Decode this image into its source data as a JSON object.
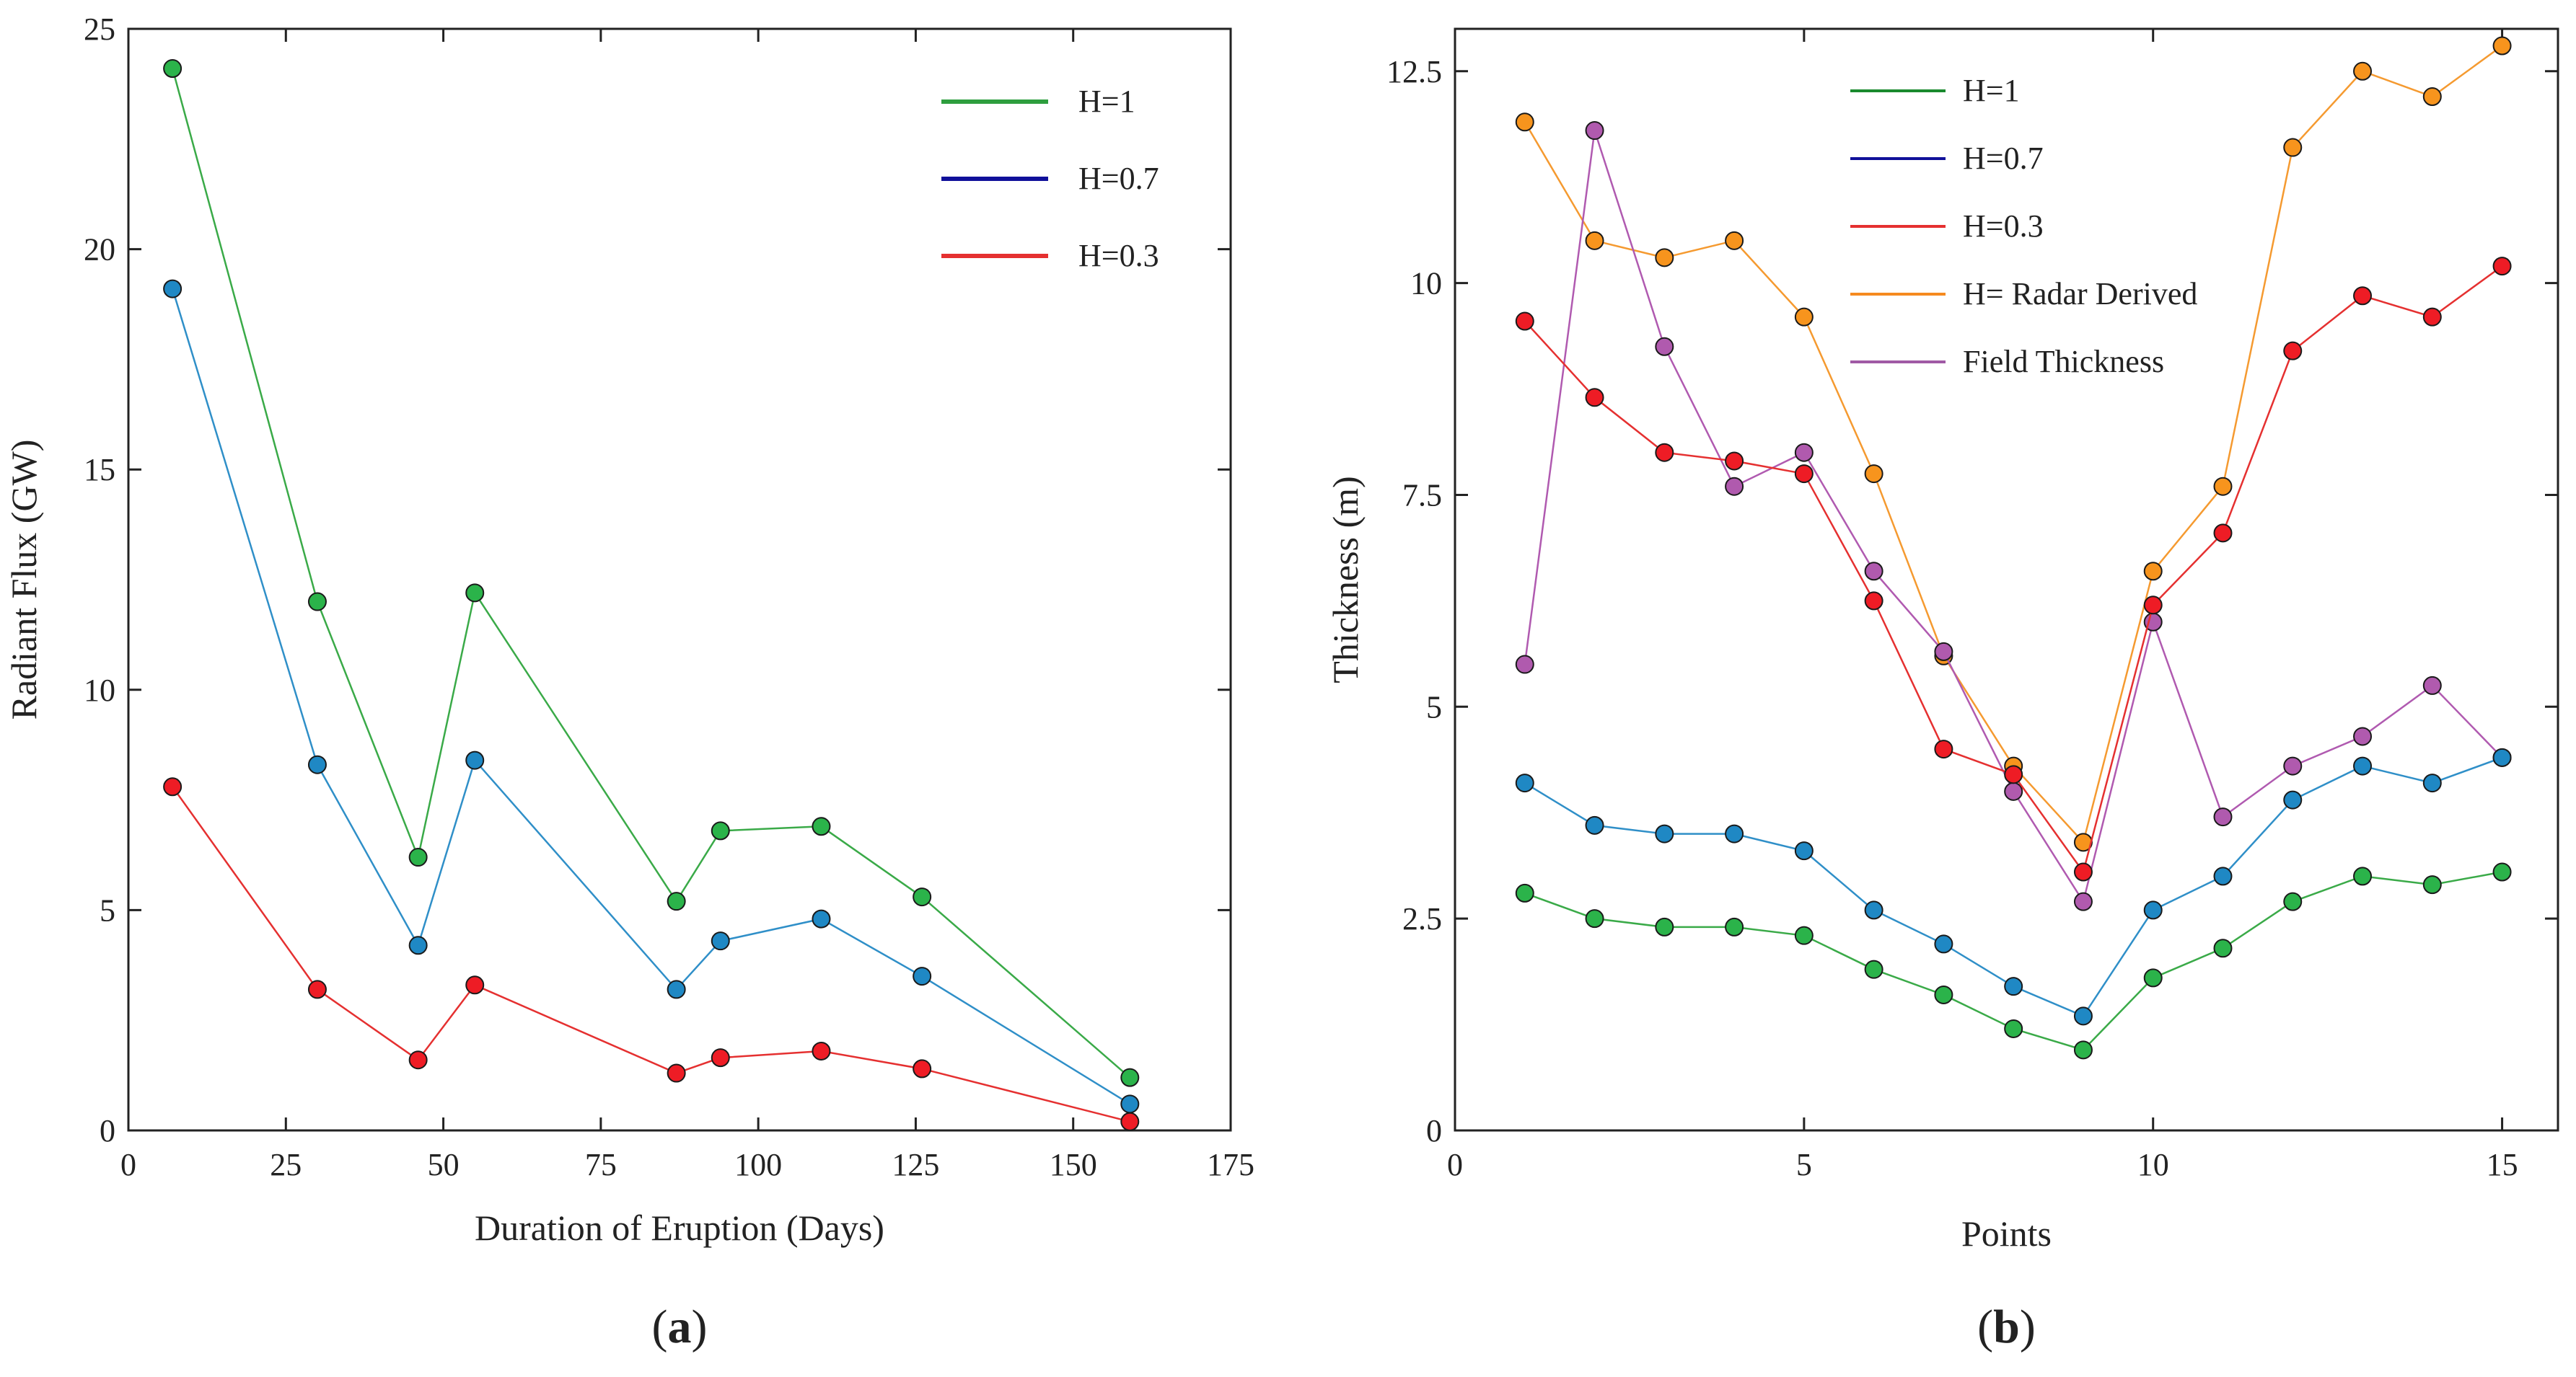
{
  "chart_data": [
    {
      "type": "line",
      "panel_label": "(a)",
      "panel_letter": "a",
      "title": "",
      "xlabel": "Duration of Eruption (Days)",
      "ylabel": "Radiant Flux (GW)",
      "xlim": [
        0,
        175
      ],
      "ylim": [
        0,
        25
      ],
      "xticks": [
        0,
        25,
        50,
        75,
        100,
        125,
        150,
        175
      ],
      "yticks": [
        0,
        5,
        10,
        15,
        20,
        25
      ],
      "xtick_labels": [
        "0",
        "25",
        "50",
        "75",
        "100",
        "125",
        "150",
        "175"
      ],
      "ytick_labels": [
        "0",
        "5",
        "10",
        "15",
        "20",
        "25"
      ],
      "legend_position": "top-right",
      "legend": [
        {
          "label": "H=1",
          "color": "#2e9e3e"
        },
        {
          "label": "H=0.7",
          "color": "#10109a"
        },
        {
          "label": "H=0.3",
          "color": "#e53030"
        }
      ],
      "x": [
        7,
        30,
        46,
        55,
        87,
        94,
        110,
        126,
        159
      ],
      "series": [
        {
          "name": "H=1",
          "line_color": "#3aaa48",
          "marker_color": "#2bb34a",
          "values": [
            24.1,
            12.0,
            6.2,
            12.2,
            5.2,
            6.8,
            6.9,
            5.3,
            1.2
          ]
        },
        {
          "name": "H=0.7",
          "line_color": "#2f8fc8",
          "marker_color": "#1f88c4",
          "values": [
            19.1,
            8.3,
            4.2,
            8.4,
            3.2,
            4.3,
            4.8,
            3.5,
            0.6
          ]
        },
        {
          "name": "H=0.3",
          "line_color": "#e53030",
          "marker_color": "#ee1c25",
          "values": [
            7.8,
            3.2,
            1.6,
            3.3,
            1.3,
            1.65,
            1.8,
            1.4,
            0.2
          ]
        }
      ]
    },
    {
      "type": "line",
      "panel_label": "(b)",
      "panel_letter": "b",
      "title": "",
      "xlabel": "Points",
      "ylabel": "Thickness (m)",
      "xlim": [
        0,
        15.8
      ],
      "ylim": [
        0,
        13
      ],
      "xticks": [
        0,
        5,
        10,
        15
      ],
      "yticks": [
        0,
        2.5,
        5,
        7.5,
        10,
        12.5
      ],
      "xtick_labels": [
        "0",
        "5",
        "10",
        "15"
      ],
      "ytick_labels": [
        "0",
        "2.5",
        "5",
        "7.5",
        "10",
        "12.5"
      ],
      "legend_position": "top-center",
      "legend": [
        {
          "label": "H=1",
          "color": "#1a8a2e"
        },
        {
          "label": "H=0.7",
          "color": "#10109a"
        },
        {
          "label": "H=0.3",
          "color": "#e53030"
        },
        {
          "label": "H= Radar Derived",
          "color": "#f58a1f"
        },
        {
          "label": "Field Thickness",
          "color": "#a05aa5"
        }
      ],
      "x": [
        1,
        2,
        3,
        4,
        5,
        6,
        7,
        8,
        9,
        10,
        11,
        12,
        13,
        14,
        15
      ],
      "series": [
        {
          "name": "H= Radar Derived",
          "line_color": "#f59a30",
          "marker_color": "#f7941d",
          "values": [
            11.9,
            10.5,
            10.3,
            10.5,
            9.6,
            7.75,
            5.6,
            4.3,
            3.4,
            6.6,
            7.6,
            11.6,
            12.5,
            12.2,
            12.8
          ]
        },
        {
          "name": "Field Thickness",
          "line_color": "#b05ab0",
          "marker_color": "#b05aae",
          "values": [
            5.5,
            11.8,
            9.25,
            7.6,
            8.0,
            6.6,
            5.65,
            4.0,
            2.7,
            6.0,
            3.7,
            4.3,
            4.65,
            5.25,
            4.4
          ]
        },
        {
          "name": "H=0.3",
          "line_color": "#e53030",
          "marker_color": "#ee1c25",
          "values": [
            9.55,
            8.65,
            8.0,
            7.9,
            7.75,
            6.25,
            4.5,
            4.2,
            3.05,
            6.2,
            7.05,
            9.2,
            9.85,
            9.6,
            10.2
          ]
        },
        {
          "name": "H=0.7",
          "line_color": "#2f8fc8",
          "marker_color": "#1f88c4",
          "values": [
            4.1,
            3.6,
            3.5,
            3.5,
            3.3,
            2.6,
            2.2,
            1.7,
            1.35,
            2.6,
            3.0,
            3.9,
            4.3,
            4.1,
            4.4
          ]
        },
        {
          "name": "H=1",
          "line_color": "#3aaa48",
          "marker_color": "#2bb34a",
          "values": [
            2.8,
            2.5,
            2.4,
            2.4,
            2.3,
            1.9,
            1.6,
            1.2,
            0.95,
            1.8,
            2.15,
            2.7,
            3.0,
            2.9,
            3.05
          ]
        }
      ]
    }
  ]
}
